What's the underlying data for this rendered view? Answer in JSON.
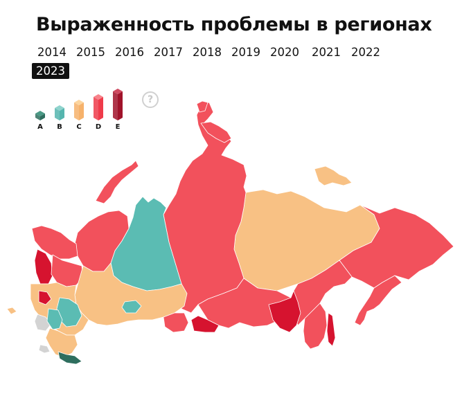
{
  "title": "Выраженность проблемы в регионах",
  "years": [
    "2014",
    "2015",
    "2016",
    "2017",
    "2018",
    "2019",
    "2020",
    "2021",
    "2022",
    "2023"
  ],
  "selected_year": "2023",
  "legend": [
    {
      "label": "A",
      "color": "#2e6e5e",
      "top": "#4a9a86"
    },
    {
      "label": "B",
      "color": "#55b5ae",
      "top": "#8fd3cd"
    },
    {
      "label": "C",
      "color": "#f6b26b",
      "top": "#fcd59f"
    },
    {
      "label": "D",
      "color": "#ef3b4a",
      "top": "#f7838b"
    },
    {
      "label": "E",
      "color": "#a0132a",
      "top": "#cf4a60"
    }
  ],
  "help_label": "?",
  "map": {
    "colors": {
      "A": "#2e6e5e",
      "B": "#5bbcb3",
      "C": "#f8c184",
      "D": "#f2515c",
      "E": "#d6132f",
      "none": "#d3d3d3"
    }
  }
}
